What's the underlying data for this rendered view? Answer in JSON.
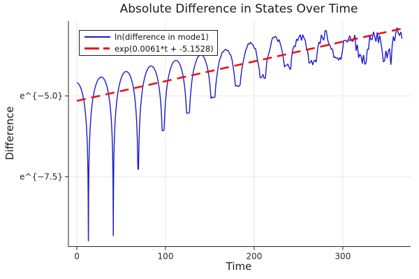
{
  "chart_data": {
    "type": "line",
    "title": "Absolute Difference in States Over Time",
    "xlabel": "Time",
    "ylabel": "Difference",
    "background": "#ffffff",
    "grid": true,
    "x_axis": {
      "lim": [
        -9.5,
        376.5
      ],
      "ticks": [
        {
          "value": 0,
          "label": "0"
        },
        {
          "value": 100,
          "label": "100"
        },
        {
          "value": 200,
          "label": "200"
        },
        {
          "value": 300,
          "label": "300"
        }
      ]
    },
    "y_axis": {
      "scale": "log-natural",
      "lim_ln": [
        -9.66,
        -2.68
      ],
      "ticks": [
        {
          "value": -5.0,
          "label": "e^{−5.0}"
        },
        {
          "value": -7.5,
          "label": "e^{−7.5}"
        }
      ]
    },
    "legend": {
      "position": "top-left",
      "border_color": "#222222",
      "background": "#ffffff"
    },
    "series": [
      {
        "name": "ln(difference in mode1)",
        "color": "#1a1acd",
        "style": "solid",
        "width": 1.4,
        "model": {
          "kind": "log_abs_damped_oscillation",
          "t_start": 0,
          "t_end": 367,
          "step": 0.25,
          "trend_slope": 0.0061,
          "trend_intercept": -5.1528,
          "peak_offset": 0.57,
          "peak_offset_decay_start": 230,
          "peak_offset_end": -0.13,
          "period": 28.1,
          "first_zero": 13,
          "dip_depths": [
            4.98,
            4.99,
            3.11,
            2.08,
            1.71,
            1.4,
            1.19,
            1.1,
            0.95,
            0.85,
            0.82,
            0.78,
            0.72
          ],
          "noise": {
            "onset": 110,
            "span": 255,
            "max_amp": 0.3,
            "exponent": 1.4,
            "step": 1.4,
            "seed": 20
          }
        },
        "observed": {
          "zero_crossings_t": [
            13,
            41,
            69,
            97,
            125,
            153,
            181,
            209,
            238,
            266,
            294,
            322,
            350
          ],
          "dip_minima_ln": [
            -9.48,
            -9.31,
            -7.26,
            -6.06,
            -5.52,
            -5.04,
            -4.67,
            -4.41,
            -4.08,
            -3.91,
            -3.82,
            -3.72,
            -3.62
          ],
          "peak_times_t": [
            26,
            55,
            84,
            113,
            142,
            170,
            199,
            228,
            256,
            285,
            313,
            341
          ],
          "peak_maxima_ln": [
            -4.46,
            -4.29,
            -4.07,
            -3.86,
            -3.68,
            -3.53,
            -3.4,
            -3.28,
            -3.15,
            -3.1,
            -3.12,
            -3.18
          ]
        }
      },
      {
        "name": "exp(0.0061*t + -5.1528)",
        "color": "#ee1111",
        "style": "dashed",
        "dash": [
          13,
          8
        ],
        "width": 2.6,
        "model": {
          "kind": "exp_of_linear",
          "slope": 0.0061,
          "intercept": -5.1528,
          "t_start": 0,
          "t_end": 368
        }
      }
    ]
  }
}
